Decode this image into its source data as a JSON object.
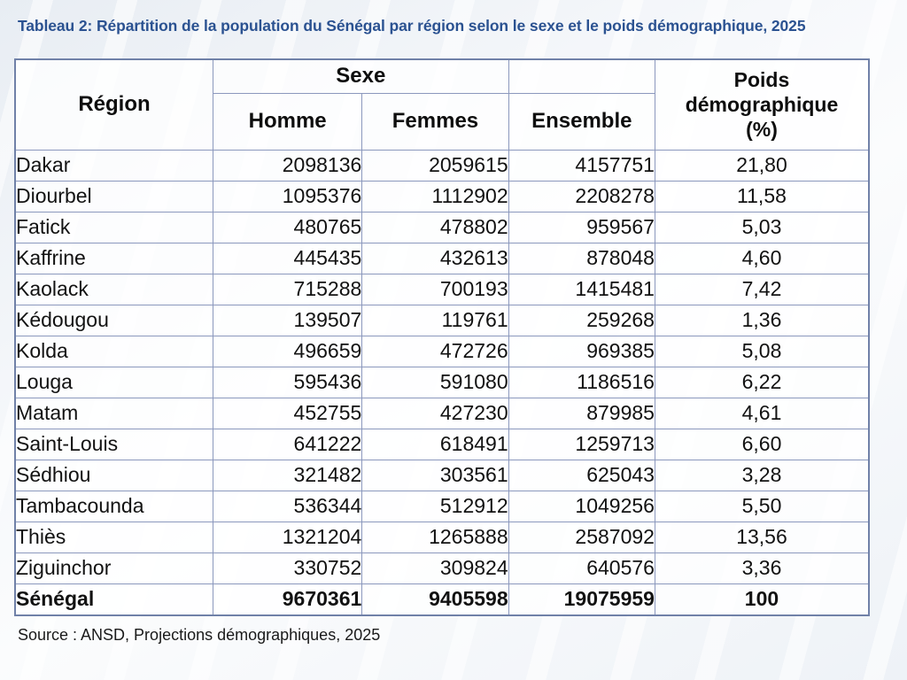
{
  "title": "Tableau 2: Répartition de la population du Sénégal par région selon le sexe et le poids démographique, 2025",
  "source": "Source : ANSD, Projections démographiques, 2025",
  "colors": {
    "title_text": "#2b5291",
    "table_outer_border": "#7081a8",
    "table_grid_line": "#8b98bd",
    "body_text": "#121212",
    "page_background": "#f1f4f8"
  },
  "table": {
    "header": {
      "region": "Région",
      "sexe": "Sexe",
      "homme": "Homme",
      "femmes": "Femmes",
      "ensemble": "Ensemble",
      "poids": [
        "Poids",
        "démographique",
        "(%)"
      ]
    },
    "rows": [
      {
        "region": "Dakar",
        "homme": "2098136",
        "femmes": "2059615",
        "ensemble": "4157751",
        "poids": "21,80"
      },
      {
        "region": "Diourbel",
        "homme": "1095376",
        "femmes": "1112902",
        "ensemble": "2208278",
        "poids": "11,58"
      },
      {
        "region": "Fatick",
        "homme": "480765",
        "femmes": "478802",
        "ensemble": "959567",
        "poids": "5,03"
      },
      {
        "region": "Kaffrine",
        "homme": "445435",
        "femmes": "432613",
        "ensemble": "878048",
        "poids": "4,60"
      },
      {
        "region": "Kaolack",
        "homme": "715288",
        "femmes": "700193",
        "ensemble": "1415481",
        "poids": "7,42"
      },
      {
        "region": "Kédougou",
        "homme": "139507",
        "femmes": "119761",
        "ensemble": "259268",
        "poids": "1,36"
      },
      {
        "region": "Kolda",
        "homme": "496659",
        "femmes": "472726",
        "ensemble": "969385",
        "poids": "5,08"
      },
      {
        "region": "Louga",
        "homme": "595436",
        "femmes": "591080",
        "ensemble": "1186516",
        "poids": "6,22"
      },
      {
        "region": "Matam",
        "homme": "452755",
        "femmes": "427230",
        "ensemble": "879985",
        "poids": "4,61"
      },
      {
        "region": "Saint-Louis",
        "homme": "641222",
        "femmes": "618491",
        "ensemble": "1259713",
        "poids": "6,60"
      },
      {
        "region": "Sédhiou",
        "homme": "321482",
        "femmes": "303561",
        "ensemble": "625043",
        "poids": "3,28"
      },
      {
        "region": "Tambacounda",
        "homme": "536344",
        "femmes": "512912",
        "ensemble": "1049256",
        "poids": "5,50"
      },
      {
        "region": "Thiès",
        "homme": "1321204",
        "femmes": "1265888",
        "ensemble": "2587092",
        "poids": "13,56"
      },
      {
        "region": "Ziguinchor",
        "homme": "330752",
        "femmes": "309824",
        "ensemble": "640576",
        "poids": "3,36"
      }
    ],
    "total": {
      "region": "Sénégal",
      "homme": "9670361",
      "femmes": "9405598",
      "ensemble": "19075959",
      "poids": "100"
    }
  }
}
